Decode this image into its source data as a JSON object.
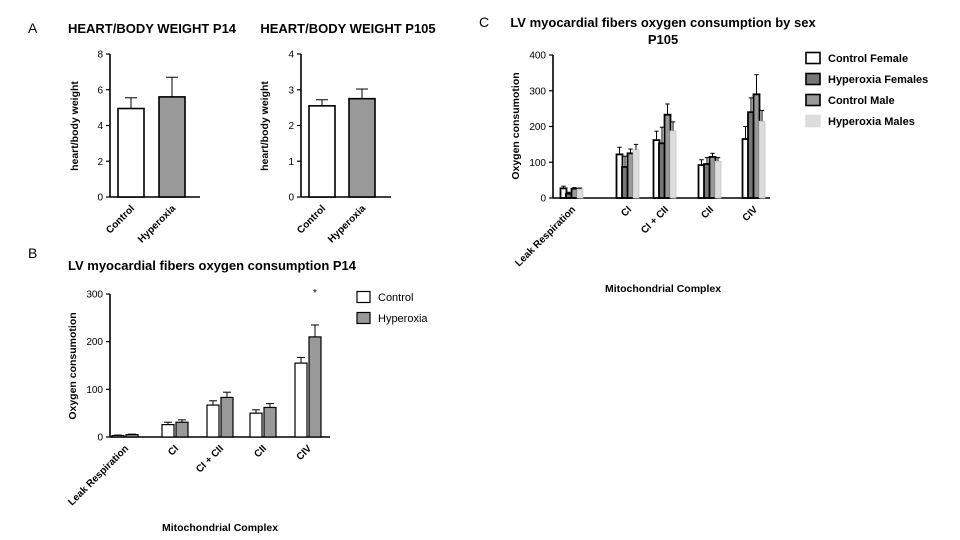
{
  "chart_data": [
    {
      "panel_label": "A",
      "type": "bar",
      "title": "HEART/BODY WEIGHT P14",
      "ylabel": "heart/body weight",
      "categories": [
        "Control",
        "Hyperoxia"
      ],
      "values": [
        4.95,
        5.6
      ],
      "errors": [
        0.6,
        1.1
      ],
      "colors": [
        "#ffffff",
        "#999999"
      ],
      "ylim": [
        0,
        8
      ],
      "yticks": [
        "0",
        "2",
        "4",
        "6",
        "8"
      ]
    },
    {
      "panel_label": "",
      "type": "bar",
      "title": "HEART/BODY WEIGHT P105",
      "ylabel": "heart/body weight",
      "categories": [
        "Control",
        "Hyperoxia"
      ],
      "values": [
        2.55,
        2.75
      ],
      "errors": [
        0.17,
        0.27
      ],
      "colors": [
        "#ffffff",
        "#999999"
      ],
      "ylim": [
        0,
        4
      ],
      "yticks": [
        "0",
        "1",
        "2",
        "3",
        "4"
      ]
    },
    {
      "panel_label": "B",
      "type": "bar",
      "title": "LV myocardial fibers oxygen consumption P14",
      "xlabel": "Mitochondrial Complex",
      "ylabel": "Oxygen consumotion",
      "categories": [
        "Leak Respiration",
        "CI",
        "CI + CII",
        "CII",
        "CIV"
      ],
      "series": [
        {
          "name": "Control",
          "values": [
            3,
            26,
            67,
            50,
            155
          ],
          "errors": [
            1,
            5,
            9,
            7,
            12
          ],
          "color": "#ffffff"
        },
        {
          "name": "Hyperoxia",
          "values": [
            5,
            31,
            83,
            62,
            210
          ],
          "errors": [
            1,
            5,
            11,
            8,
            25
          ],
          "color": "#999999"
        }
      ],
      "ylim": [
        0,
        300
      ],
      "yticks": [
        "0",
        "100",
        "200",
        "300"
      ],
      "annotation": "*",
      "legend_position": "top-right"
    },
    {
      "panel_label": "C",
      "type": "bar",
      "title": "LV myocardial fibers oxygen consumption by sex",
      "subtitle": "P105",
      "xlabel": "Mitochondrial Complex",
      "ylabel": "Oxygen consumotion",
      "categories": [
        "Leak Respiration",
        "CI",
        "CI + CII",
        "CII",
        "CIV"
      ],
      "series": [
        {
          "name": "Control Female",
          "values": [
            27,
            122,
            162,
            92,
            165
          ],
          "errors": [
            6,
            20,
            25,
            15,
            35
          ],
          "color": "#ffffff"
        },
        {
          "name": "Hyperoxia Females",
          "values": [
            12,
            87,
            153,
            95,
            240
          ],
          "errors": [
            4,
            30,
            45,
            18,
            40
          ],
          "color": "#777777"
        },
        {
          "name": "Control Male",
          "values": [
            26,
            125,
            233,
            115,
            290
          ],
          "errors": [
            3,
            12,
            30,
            10,
            55
          ],
          "color": "#999999"
        },
        {
          "name": "Hyperoxia Males",
          "values": [
            25,
            135,
            188,
            103,
            215
          ],
          "errors": [
            3,
            15,
            25,
            10,
            30
          ],
          "color": "#dddddd"
        }
      ],
      "ylim": [
        0,
        400
      ],
      "yticks": [
        "0",
        "100",
        "200",
        "300",
        "400"
      ],
      "legend_position": "right"
    }
  ]
}
